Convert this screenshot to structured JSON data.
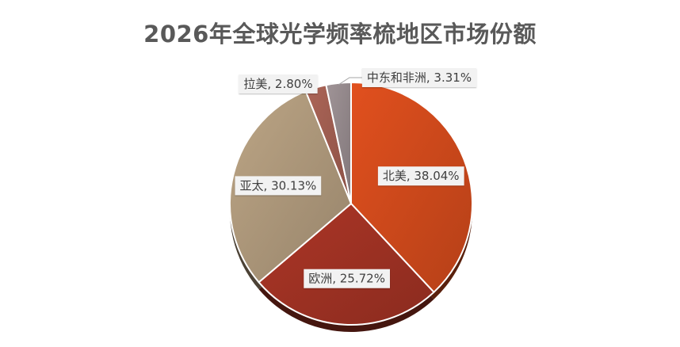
{
  "chart_data": {
    "type": "pie",
    "title": "2026年全球光学频率梳地区市场份额",
    "slices": [
      {
        "label": "北美",
        "value": 38.04,
        "display": "北美, 38.04%",
        "color": "#C9471B"
      },
      {
        "label": "欧洲",
        "value": 25.72,
        "display": "欧洲, 25.72%",
        "color": "#9A3022"
      },
      {
        "label": "亚太",
        "value": 30.13,
        "display": "亚太, 30.13%",
        "color": "#A89377"
      },
      {
        "label": "拉美",
        "value": 2.8,
        "display": "拉美, 2.80%",
        "color": "#9A5A4E"
      },
      {
        "label": "中东和非洲",
        "value": 3.31,
        "display": "中东和非洲, 3.31%",
        "color": "#8F8487"
      }
    ],
    "start_angle_deg": 0,
    "direction": "clockwise",
    "legend": "none",
    "data_labels": "category-and-percent"
  }
}
